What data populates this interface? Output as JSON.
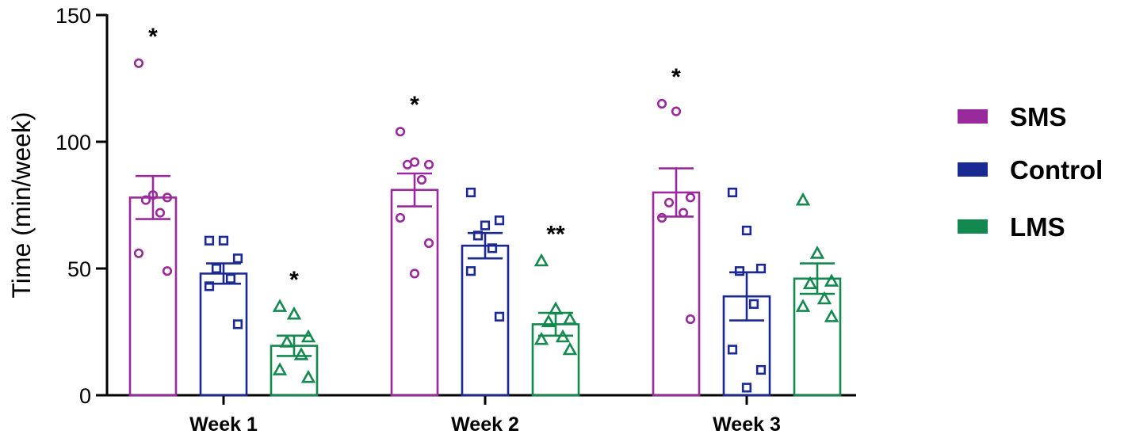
{
  "chart_data": {
    "type": "bar",
    "title": "",
    "xlabel": "",
    "ylabel": "Time (min/week)",
    "ylim": [
      0,
      150
    ],
    "yticks": [
      0,
      50,
      100,
      150
    ],
    "categories": [
      "Week 1",
      "Week 2",
      "Week 3"
    ],
    "series": [
      {
        "name": "SMS",
        "color": "#992a9c",
        "marker": "circle",
        "values": [
          78,
          81,
          80
        ],
        "sem": [
          8.5,
          6.5,
          9.5
        ],
        "points": [
          [
            131,
            79,
            78,
            77,
            72,
            56,
            49
          ],
          [
            104,
            92,
            91,
            91,
            85,
            70,
            60,
            48
          ],
          [
            115,
            112,
            78,
            76,
            72,
            70,
            30
          ]
        ],
        "annotations": [
          "*",
          "*",
          "*"
        ]
      },
      {
        "name": "Control",
        "color": "#1b2a93",
        "marker": "square",
        "values": [
          48,
          59,
          39
        ],
        "sem": [
          4,
          5,
          9.5
        ],
        "points": [
          [
            61,
            61,
            54,
            50,
            46,
            43,
            28
          ],
          [
            80,
            67,
            69,
            63,
            58,
            49,
            31
          ],
          [
            80,
            65,
            50,
            49,
            36,
            18,
            10,
            3
          ]
        ],
        "annotations": [
          "",
          "",
          ""
        ]
      },
      {
        "name": "LMS",
        "color": "#14894f",
        "marker": "triangle",
        "values": [
          19.5,
          28,
          46
        ],
        "sem": [
          4,
          4.5,
          6
        ],
        "points": [
          [
            35,
            32,
            23,
            21,
            16,
            10,
            7
          ],
          [
            53,
            34,
            30,
            29,
            23,
            22,
            18
          ],
          [
            77,
            56,
            45,
            44,
            38,
            35,
            31
          ]
        ],
        "annotations": [
          "*",
          "**",
          ""
        ]
      }
    ],
    "legend_position": "right"
  }
}
